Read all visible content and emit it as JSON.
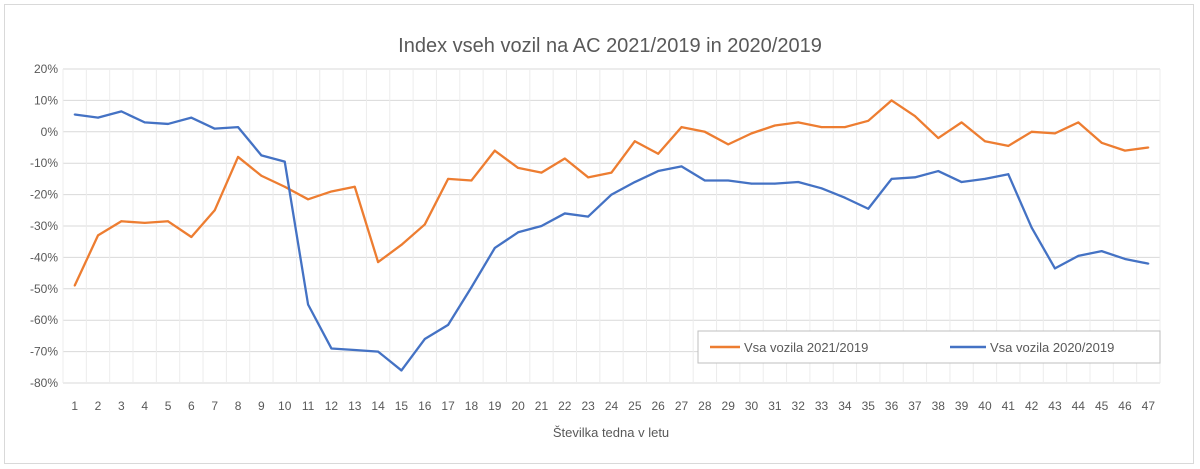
{
  "chart_data": {
    "type": "line",
    "title": "Index vseh vozil na AC 2021/2019 in 2020/2019",
    "xlabel": "Številka tedna v letu",
    "ylabel": "",
    "ylim": [
      -80,
      20
    ],
    "y_ticks": [
      "20%",
      "10%",
      "0%",
      "-10%",
      "-20%",
      "-30%",
      "-40%",
      "-50%",
      "-60%",
      "-70%",
      "-80%"
    ],
    "y_tick_values": [
      20,
      10,
      0,
      -10,
      -20,
      -30,
      -40,
      -50,
      -60,
      -70,
      -80
    ],
    "x": [
      1,
      2,
      3,
      4,
      5,
      6,
      7,
      8,
      9,
      10,
      11,
      12,
      13,
      14,
      15,
      16,
      17,
      18,
      19,
      20,
      21,
      22,
      23,
      24,
      25,
      26,
      27,
      28,
      29,
      30,
      31,
      32,
      33,
      34,
      35,
      36,
      37,
      38,
      39,
      40,
      41,
      42,
      43,
      44,
      45,
      46,
      47
    ],
    "grid": true,
    "legend_position": "bottom-right",
    "series": [
      {
        "name": "Vsa vozila 2021/2019",
        "color": "#ed7d31",
        "values": [
          -49,
          -33,
          -28.5,
          -29,
          -28.5,
          -33.5,
          -25,
          -8,
          -14,
          -17.5,
          -21.5,
          -19,
          -17.5,
          -41.5,
          -36,
          -29.5,
          -15,
          -15.5,
          -6,
          -11.5,
          -13,
          -8.5,
          -14.5,
          -13,
          -3,
          -7,
          1.5,
          0,
          -4,
          -0.5,
          2,
          3,
          1.5,
          1.5,
          3.5,
          10,
          5,
          -2,
          3,
          -3,
          -4.5,
          0,
          -0.5,
          3,
          -3.5,
          -6,
          -5
        ]
      },
      {
        "name": "Vsa vozila 2020/2019",
        "color": "#4472c4",
        "values": [
          5.5,
          4.5,
          6.5,
          3,
          2.5,
          4.5,
          1,
          1.5,
          -7.5,
          -9.5,
          -55,
          -69,
          -69.5,
          -70,
          -76,
          -66,
          -61.5,
          -49.5,
          -37,
          -32,
          -30,
          -26,
          -27,
          -20,
          -16,
          -12.5,
          -11,
          -15.5,
          -15.5,
          -16.5,
          -16.5,
          -16,
          -18,
          -21,
          -24.5,
          -15,
          -14.5,
          -12.5,
          -16,
          -15,
          -13.5,
          -30.5,
          -43.5,
          -39.5,
          -38,
          -40.5,
          -42
        ]
      }
    ]
  }
}
